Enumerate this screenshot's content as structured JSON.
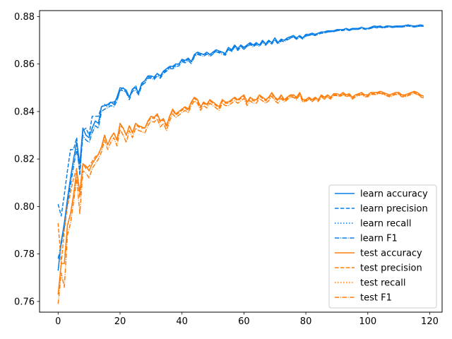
{
  "chart_data": {
    "type": "line",
    "title": "",
    "xlabel": "",
    "ylabel": "",
    "xlim": [
      -6,
      124
    ],
    "ylim": [
      0.7555,
      0.8825
    ],
    "x_ticks": [
      0,
      20,
      40,
      60,
      80,
      100,
      120
    ],
    "y_ticks": [
      0.76,
      0.78,
      0.8,
      0.82,
      0.84,
      0.86,
      0.88
    ],
    "grid": false,
    "legend_position": "lower-right",
    "x": [
      0,
      1,
      2,
      3,
      4,
      5,
      6,
      7,
      8,
      9,
      10,
      11,
      12,
      13,
      14,
      15,
      16,
      17,
      18,
      19,
      20,
      21,
      22,
      23,
      24,
      25,
      26,
      27,
      28,
      29,
      30,
      31,
      32,
      33,
      34,
      35,
      36,
      37,
      38,
      39,
      40,
      41,
      42,
      43,
      44,
      45,
      46,
      47,
      48,
      49,
      50,
      51,
      52,
      53,
      54,
      55,
      56,
      57,
      58,
      59,
      60,
      61,
      62,
      63,
      64,
      65,
      66,
      67,
      68,
      69,
      70,
      71,
      72,
      73,
      74,
      75,
      76,
      77,
      78,
      79,
      80,
      81,
      82,
      83,
      84,
      85,
      86,
      87,
      88,
      89,
      90,
      91,
      92,
      93,
      94,
      95,
      96,
      97,
      98,
      99,
      100,
      101,
      102,
      103,
      104,
      105,
      106,
      107,
      108,
      109,
      110,
      111,
      112,
      113,
      114,
      115,
      116,
      117,
      118
    ],
    "series": [
      {
        "name": "learn accuracy",
        "color": "#0a7fe6",
        "dash": "solid",
        "values": [
          0.773,
          0.785,
          0.793,
          0.803,
          0.812,
          0.82,
          0.827,
          0.818,
          0.833,
          0.83,
          0.829,
          0.833,
          0.836,
          0.835,
          0.842,
          0.8425,
          0.843,
          0.844,
          0.843,
          0.846,
          0.85,
          0.8498,
          0.849,
          0.846,
          0.8495,
          0.85,
          0.848,
          0.852,
          0.853,
          0.855,
          0.855,
          0.8545,
          0.856,
          0.855,
          0.857,
          0.858,
          0.859,
          0.859,
          0.86,
          0.86,
          0.862,
          0.8615,
          0.8625,
          0.861,
          0.864,
          0.865,
          0.8645,
          0.864,
          0.865,
          0.864,
          0.865,
          0.866,
          0.8655,
          0.865,
          0.8645,
          0.867,
          0.866,
          0.868,
          0.8665,
          0.868,
          0.867,
          0.868,
          0.869,
          0.868,
          0.869,
          0.868,
          0.87,
          0.8685,
          0.87,
          0.869,
          0.871,
          0.869,
          0.8705,
          0.87,
          0.871,
          0.8715,
          0.872,
          0.871,
          0.872,
          0.871,
          0.8725,
          0.8725,
          0.873,
          0.8725,
          0.873,
          0.8735,
          0.8735,
          0.874,
          0.874,
          0.874,
          0.8745,
          0.8745,
          0.8745,
          0.875,
          0.8745,
          0.875,
          0.875,
          0.875,
          0.8755,
          0.875,
          0.875,
          0.8755,
          0.876,
          0.8758,
          0.876,
          0.8755,
          0.876,
          0.876,
          0.8758,
          0.876,
          0.876,
          0.876,
          0.8762,
          0.8765,
          0.8762,
          0.876,
          0.8762,
          0.8765,
          0.8762
        ]
      },
      {
        "name": "learn precision",
        "color": "#0a7fe6",
        "dash": "5.5,2.4",
        "values": [
          0.801,
          0.796,
          0.805,
          0.815,
          0.824,
          0.824,
          0.829,
          0.813,
          0.832,
          0.833,
          0.83,
          0.838,
          0.838,
          0.838,
          0.842,
          0.843,
          0.842,
          0.844,
          0.844,
          0.845,
          0.849,
          0.85,
          0.848,
          0.846,
          0.849,
          0.851,
          0.8475,
          0.851,
          0.853,
          0.8545,
          0.8545,
          0.854,
          0.856,
          0.8545,
          0.8565,
          0.8575,
          0.8585,
          0.8585,
          0.8595,
          0.86,
          0.8615,
          0.861,
          0.862,
          0.861,
          0.8635,
          0.8645,
          0.864,
          0.864,
          0.8645,
          0.864,
          0.8645,
          0.8655,
          0.865,
          0.865,
          0.864,
          0.8665,
          0.8655,
          0.8675,
          0.866,
          0.8675,
          0.8665,
          0.8675,
          0.8685,
          0.8675,
          0.8685,
          0.868,
          0.8695,
          0.8685,
          0.8695,
          0.869,
          0.8705,
          0.869,
          0.87,
          0.87,
          0.8705,
          0.871,
          0.8715,
          0.8705,
          0.8715,
          0.871,
          0.872,
          0.872,
          0.8725,
          0.872,
          0.8728,
          0.873,
          0.8732,
          0.8735,
          0.8736,
          0.8738,
          0.874,
          0.8742,
          0.8742,
          0.8745,
          0.8742,
          0.8746,
          0.8746,
          0.8748,
          0.875,
          0.8748,
          0.8748,
          0.875,
          0.8755,
          0.8752,
          0.8755,
          0.8752,
          0.8755,
          0.8756,
          0.8755,
          0.8756,
          0.8756,
          0.8756,
          0.8758,
          0.876,
          0.8758,
          0.8756,
          0.8758,
          0.876,
          0.8758
        ]
      },
      {
        "name": "learn recall",
        "color": "#0a7fe6",
        "dash": "1.5,2.5",
        "values": [
          0.773,
          0.785,
          0.793,
          0.803,
          0.812,
          0.82,
          0.827,
          0.818,
          0.833,
          0.83,
          0.829,
          0.833,
          0.836,
          0.835,
          0.842,
          0.8425,
          0.843,
          0.844,
          0.843,
          0.846,
          0.85,
          0.8498,
          0.849,
          0.846,
          0.8495,
          0.85,
          0.848,
          0.852,
          0.853,
          0.855,
          0.855,
          0.8545,
          0.856,
          0.855,
          0.857,
          0.858,
          0.859,
          0.859,
          0.86,
          0.86,
          0.862,
          0.8615,
          0.8625,
          0.861,
          0.864,
          0.865,
          0.8645,
          0.864,
          0.865,
          0.864,
          0.865,
          0.866,
          0.8655,
          0.865,
          0.8645,
          0.867,
          0.866,
          0.868,
          0.8665,
          0.868,
          0.867,
          0.868,
          0.869,
          0.868,
          0.869,
          0.868,
          0.87,
          0.8685,
          0.87,
          0.869,
          0.871,
          0.869,
          0.8705,
          0.87,
          0.871,
          0.8715,
          0.872,
          0.871,
          0.872,
          0.871,
          0.8725,
          0.8725,
          0.873,
          0.8725,
          0.873,
          0.8735,
          0.8735,
          0.874,
          0.874,
          0.874,
          0.8745,
          0.8745,
          0.8745,
          0.875,
          0.8745,
          0.875,
          0.875,
          0.875,
          0.8755,
          0.875,
          0.875,
          0.8755,
          0.876,
          0.8758,
          0.876,
          0.8755,
          0.876,
          0.876,
          0.8758,
          0.876,
          0.876,
          0.876,
          0.8762,
          0.8765,
          0.8762,
          0.876,
          0.8762,
          0.8765,
          0.8762
        ]
      },
      {
        "name": "learn F1",
        "color": "#0a7fe6",
        "dash": "6.4,1.6,1,1.6",
        "values": [
          0.778,
          0.784,
          0.791,
          0.801,
          0.809,
          0.817,
          0.824,
          0.815,
          0.83,
          0.828,
          0.827,
          0.831,
          0.834,
          0.833,
          0.84,
          0.841,
          0.8415,
          0.8425,
          0.842,
          0.8445,
          0.849,
          0.8488,
          0.848,
          0.845,
          0.8485,
          0.849,
          0.847,
          0.851,
          0.852,
          0.854,
          0.854,
          0.8535,
          0.855,
          0.854,
          0.856,
          0.857,
          0.858,
          0.858,
          0.859,
          0.8592,
          0.861,
          0.8605,
          0.8615,
          0.8602,
          0.863,
          0.864,
          0.8637,
          0.8632,
          0.8642,
          0.8632,
          0.8642,
          0.8652,
          0.8647,
          0.8642,
          0.8637,
          0.8662,
          0.8652,
          0.8672,
          0.8657,
          0.8672,
          0.8662,
          0.8672,
          0.8682,
          0.8672,
          0.8682,
          0.8674,
          0.8692,
          0.8679,
          0.8692,
          0.8684,
          0.8702,
          0.8684,
          0.8697,
          0.8694,
          0.8702,
          0.8708,
          0.8714,
          0.8704,
          0.8714,
          0.8705,
          0.8718,
          0.872,
          0.8724,
          0.872,
          0.8725,
          0.873,
          0.873,
          0.8735,
          0.8736,
          0.8736,
          0.8741,
          0.8741,
          0.8741,
          0.8746,
          0.8741,
          0.8746,
          0.8746,
          0.8746,
          0.8751,
          0.8746,
          0.8746,
          0.8751,
          0.8755,
          0.8754,
          0.8756,
          0.8751,
          0.8756,
          0.8756,
          0.8754,
          0.8756,
          0.8756,
          0.8756,
          0.8758,
          0.8761,
          0.8758,
          0.8756,
          0.8758,
          0.8761,
          0.8758
        ]
      },
      {
        "name": "test accuracy",
        "color": "#ff7f0e",
        "dash": "solid",
        "values": [
          0.763,
          0.776,
          0.776,
          0.792,
          0.797,
          0.805,
          0.815,
          0.806,
          0.818,
          0.817,
          0.815,
          0.818,
          0.82,
          0.822,
          0.825,
          0.83,
          0.826,
          0.829,
          0.831,
          0.828,
          0.835,
          0.833,
          0.83,
          0.834,
          0.831,
          0.835,
          0.834,
          0.8335,
          0.833,
          0.836,
          0.838,
          0.8375,
          0.839,
          0.836,
          0.837,
          0.834,
          0.838,
          0.841,
          0.839,
          0.84,
          0.841,
          0.842,
          0.841,
          0.844,
          0.846,
          0.845,
          0.842,
          0.844,
          0.843,
          0.845,
          0.844,
          0.843,
          0.842,
          0.845,
          0.844,
          0.844,
          0.845,
          0.846,
          0.845,
          0.846,
          0.847,
          0.844,
          0.846,
          0.845,
          0.845,
          0.847,
          0.846,
          0.845,
          0.846,
          0.848,
          0.846,
          0.845,
          0.847,
          0.845,
          0.846,
          0.847,
          0.847,
          0.846,
          0.848,
          0.845,
          0.845,
          0.846,
          0.845,
          0.846,
          0.845,
          0.847,
          0.846,
          0.847,
          0.846,
          0.8475,
          0.8475,
          0.847,
          0.848,
          0.847,
          0.8475,
          0.846,
          0.847,
          0.8475,
          0.848,
          0.847,
          0.847,
          0.848,
          0.848,
          0.848,
          0.8485,
          0.848,
          0.8475,
          0.847,
          0.8475,
          0.848,
          0.848,
          0.847,
          0.847,
          0.8475,
          0.848,
          0.8485,
          0.848,
          0.847,
          0.8465
        ]
      },
      {
        "name": "test precision",
        "color": "#ff7f0e",
        "dash": "5.5,2.4",
        "values": [
          0.793,
          0.776,
          0.79,
          0.8,
          0.806,
          0.812,
          0.816,
          0.804,
          0.818,
          0.816,
          0.817,
          0.819,
          0.821,
          0.822,
          0.825,
          0.83,
          0.826,
          0.829,
          0.831,
          0.828,
          0.834,
          0.833,
          0.83,
          0.834,
          0.831,
          0.8345,
          0.8335,
          0.833,
          0.833,
          0.8355,
          0.8375,
          0.837,
          0.8385,
          0.8355,
          0.8365,
          0.8335,
          0.8375,
          0.8405,
          0.8385,
          0.8395,
          0.8405,
          0.8415,
          0.8405,
          0.8435,
          0.8455,
          0.8445,
          0.8415,
          0.8435,
          0.8425,
          0.8445,
          0.8435,
          0.8425,
          0.8415,
          0.8445,
          0.8435,
          0.8435,
          0.8445,
          0.8455,
          0.8445,
          0.8455,
          0.8465,
          0.8435,
          0.8455,
          0.8445,
          0.8445,
          0.8465,
          0.8455,
          0.8445,
          0.8455,
          0.8475,
          0.8455,
          0.8445,
          0.8465,
          0.8445,
          0.8455,
          0.8465,
          0.8465,
          0.8455,
          0.8475,
          0.8445,
          0.8445,
          0.8455,
          0.8445,
          0.8455,
          0.8445,
          0.8465,
          0.8455,
          0.8465,
          0.8455,
          0.847,
          0.847,
          0.8465,
          0.8475,
          0.8465,
          0.847,
          0.8455,
          0.8465,
          0.847,
          0.8475,
          0.8465,
          0.8465,
          0.8475,
          0.8475,
          0.8475,
          0.848,
          0.8475,
          0.847,
          0.8465,
          0.847,
          0.8475,
          0.8475,
          0.8465,
          0.8465,
          0.847,
          0.8475,
          0.848,
          0.8475,
          0.8465,
          0.846
        ]
      },
      {
        "name": "test recall",
        "color": "#ff7f0e",
        "dash": "1.5,2.5",
        "values": [
          0.763,
          0.776,
          0.776,
          0.792,
          0.797,
          0.805,
          0.815,
          0.806,
          0.818,
          0.817,
          0.815,
          0.818,
          0.82,
          0.822,
          0.825,
          0.83,
          0.826,
          0.829,
          0.831,
          0.828,
          0.835,
          0.833,
          0.83,
          0.834,
          0.831,
          0.835,
          0.834,
          0.8335,
          0.833,
          0.836,
          0.838,
          0.8375,
          0.839,
          0.836,
          0.837,
          0.834,
          0.838,
          0.841,
          0.839,
          0.84,
          0.841,
          0.842,
          0.841,
          0.844,
          0.846,
          0.845,
          0.842,
          0.844,
          0.843,
          0.845,
          0.844,
          0.843,
          0.842,
          0.845,
          0.844,
          0.844,
          0.845,
          0.846,
          0.845,
          0.846,
          0.847,
          0.844,
          0.846,
          0.845,
          0.845,
          0.847,
          0.846,
          0.845,
          0.846,
          0.848,
          0.846,
          0.845,
          0.847,
          0.845,
          0.846,
          0.847,
          0.847,
          0.846,
          0.848,
          0.845,
          0.845,
          0.846,
          0.845,
          0.846,
          0.845,
          0.847,
          0.846,
          0.847,
          0.846,
          0.8475,
          0.8475,
          0.847,
          0.848,
          0.847,
          0.8475,
          0.846,
          0.847,
          0.8475,
          0.848,
          0.847,
          0.847,
          0.848,
          0.848,
          0.848,
          0.8485,
          0.848,
          0.8475,
          0.847,
          0.8475,
          0.848,
          0.848,
          0.847,
          0.847,
          0.8475,
          0.848,
          0.8485,
          0.848,
          0.847,
          0.8465
        ]
      },
      {
        "name": "test F1",
        "color": "#ff7f0e",
        "dash": "6.4,1.6,1,1.6",
        "values": [
          0.759,
          0.772,
          0.766,
          0.788,
          0.793,
          0.802,
          0.812,
          0.797,
          0.815,
          0.814,
          0.812,
          0.816,
          0.818,
          0.82,
          0.823,
          0.828,
          0.824,
          0.827,
          0.829,
          0.8255,
          0.8325,
          0.83,
          0.827,
          0.832,
          0.829,
          0.833,
          0.832,
          0.8315,
          0.831,
          0.834,
          0.836,
          0.8355,
          0.837,
          0.8335,
          0.835,
          0.832,
          0.836,
          0.839,
          0.8375,
          0.8385,
          0.8395,
          0.8405,
          0.8395,
          0.8425,
          0.8445,
          0.8435,
          0.8405,
          0.8425,
          0.8415,
          0.8435,
          0.8425,
          0.8415,
          0.8405,
          0.8435,
          0.8425,
          0.8425,
          0.8435,
          0.8445,
          0.8435,
          0.8445,
          0.8455,
          0.8425,
          0.8445,
          0.8435,
          0.8435,
          0.8455,
          0.8445,
          0.8435,
          0.8445,
          0.8465,
          0.8445,
          0.8435,
          0.8455,
          0.844,
          0.845,
          0.846,
          0.846,
          0.845,
          0.847,
          0.844,
          0.8442,
          0.8452,
          0.8442,
          0.8452,
          0.8442,
          0.8462,
          0.8452,
          0.8462,
          0.8452,
          0.8467,
          0.8467,
          0.8462,
          0.8472,
          0.8462,
          0.8467,
          0.8452,
          0.8462,
          0.8467,
          0.8472,
          0.8462,
          0.8462,
          0.8472,
          0.8472,
          0.8472,
          0.8477,
          0.8472,
          0.8467,
          0.8462,
          0.8467,
          0.8472,
          0.8472,
          0.8462,
          0.8462,
          0.8467,
          0.8472,
          0.8477,
          0.8472,
          0.8462,
          0.8457
        ]
      }
    ]
  }
}
